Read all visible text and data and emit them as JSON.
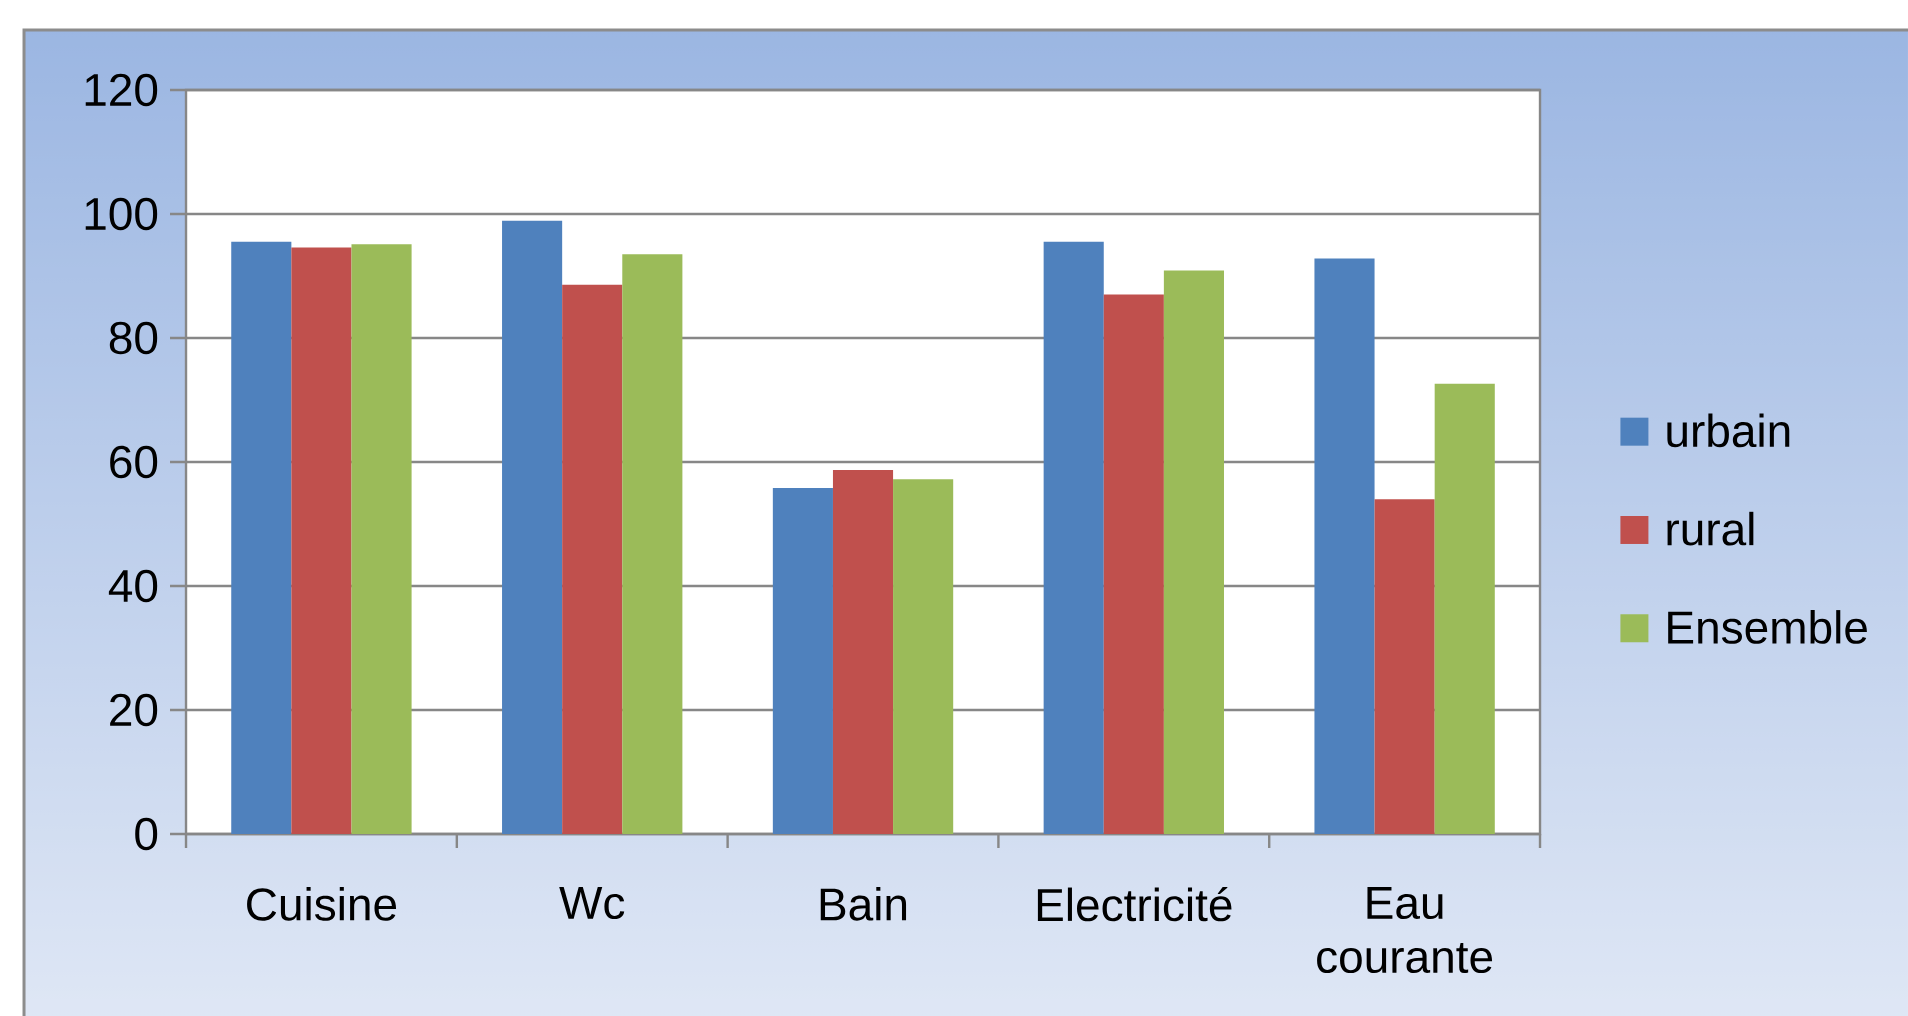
{
  "chart_data": {
    "type": "bar",
    "categories": [
      "Cuisine",
      "Wc",
      "Bain",
      "Electricité",
      "Eau courante"
    ],
    "series": [
      {
        "name": "urbain",
        "color": "#4f81bd",
        "values": [
          95.5,
          98.9,
          55.8,
          95.5,
          92.8
        ]
      },
      {
        "name": "rural",
        "color": "#c0504d",
        "values": [
          94.6,
          88.6,
          58.7,
          87.0,
          54.0
        ]
      },
      {
        "name": "Ensemble",
        "color": "#9bbb59",
        "values": [
          95.1,
          93.5,
          57.2,
          90.9,
          72.6
        ]
      }
    ],
    "ylim": [
      0,
      120
    ],
    "yticks": [
      0,
      20,
      40,
      60,
      80,
      100,
      120
    ],
    "grid": "y",
    "legend": "right"
  }
}
